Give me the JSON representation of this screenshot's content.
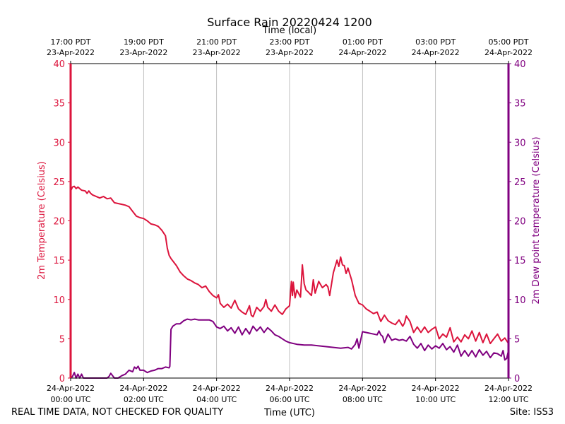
{
  "chart_data": {
    "type": "line",
    "title": "Surface Rain 20220424 1200",
    "top_axis_label": "Time (local)",
    "xlabel": "Time (UTC)",
    "ylabel_left": "2m Temperature (Celsius)",
    "ylabel_right": "2m Dew point temperature (Celsius)",
    "footer_left": "REAL TIME DATA, NOT CHECKED FOR QUALITY",
    "footer_right": "Site: ISS3",
    "x_unit": "hours since 2022-04-24 00:00 UTC",
    "xlim": [
      0,
      12
    ],
    "ylim": [
      0,
      40
    ],
    "yticks": [
      0,
      5,
      10,
      15,
      20,
      25,
      30,
      35,
      40
    ],
    "grid": "vertical",
    "colors": {
      "temperature": "#dc143c",
      "dewpoint": "#800080",
      "grid": "#b0b0b0",
      "axis": "#000000"
    },
    "bottom_ticks": [
      {
        "x": 0,
        "line1": "24-Apr-2022",
        "line2": "00:00 UTC"
      },
      {
        "x": 2,
        "line1": "24-Apr-2022",
        "line2": "02:00 UTC"
      },
      {
        "x": 4,
        "line1": "24-Apr-2022",
        "line2": "04:00 UTC"
      },
      {
        "x": 6,
        "line1": "24-Apr-2022",
        "line2": "06:00 UTC"
      },
      {
        "x": 8,
        "line1": "24-Apr-2022",
        "line2": "08:00 UTC"
      },
      {
        "x": 10,
        "line1": "24-Apr-2022",
        "line2": "10:00 UTC"
      },
      {
        "x": 12,
        "line1": "24-Apr-2022",
        "line2": "12:00 UTC"
      }
    ],
    "top_ticks": [
      {
        "x": 0,
        "line1": "17:00 PDT",
        "line2": "23-Apr-2022"
      },
      {
        "x": 2,
        "line1": "19:00 PDT",
        "line2": "23-Apr-2022"
      },
      {
        "x": 4,
        "line1": "21:00 PDT",
        "line2": "23-Apr-2022"
      },
      {
        "x": 6,
        "line1": "23:00 PDT",
        "line2": "23-Apr-2022"
      },
      {
        "x": 8,
        "line1": "01:00 PDT",
        "line2": "24-Apr-2022"
      },
      {
        "x": 10,
        "line1": "03:00 PDT",
        "line2": "24-Apr-2022"
      },
      {
        "x": 12,
        "line1": "05:00 PDT",
        "line2": "24-Apr-2022"
      }
    ],
    "series": [
      {
        "name": "2m Temperature",
        "axis": "left",
        "x": [
          0,
          0.05,
          0.1,
          0.15,
          0.2,
          0.3,
          0.4,
          0.45,
          0.5,
          0.55,
          0.6,
          0.8,
          0.9,
          1.0,
          1.1,
          1.2,
          1.3,
          1.4,
          1.5,
          1.6,
          1.7,
          1.8,
          1.9,
          2.0,
          2.1,
          2.2,
          2.3,
          2.4,
          2.5,
          2.6,
          2.65,
          2.7,
          2.75,
          2.8,
          2.9,
          3.0,
          3.1,
          3.2,
          3.3,
          3.4,
          3.5,
          3.6,
          3.7,
          3.8,
          3.9,
          4.0,
          4.05,
          4.1,
          4.2,
          4.3,
          4.4,
          4.5,
          4.6,
          4.7,
          4.8,
          4.9,
          4.95,
          5.0,
          5.1,
          5.2,
          5.3,
          5.35,
          5.4,
          5.5,
          5.6,
          5.7,
          5.8,
          5.9,
          6.0,
          6.05,
          6.08,
          6.1,
          6.15,
          6.2,
          6.3,
          6.35,
          6.4,
          6.45,
          6.5,
          6.6,
          6.65,
          6.7,
          6.8,
          6.9,
          7.0,
          7.05,
          7.1,
          7.2,
          7.3,
          7.35,
          7.4,
          7.45,
          7.5,
          7.55,
          7.6,
          7.7,
          7.8,
          7.85,
          7.9,
          8.0,
          8.1,
          8.2,
          8.3,
          8.4,
          8.5,
          8.6,
          8.7,
          8.8,
          8.9,
          9.0,
          9.1,
          9.15,
          9.2,
          9.3,
          9.4,
          9.5,
          9.6,
          9.7,
          9.8,
          9.9,
          10.0,
          10.1,
          10.2,
          10.3,
          10.4,
          10.5,
          10.6,
          10.7,
          10.8,
          10.9,
          11.0,
          11.1,
          11.2,
          11.3,
          11.4,
          11.5,
          11.6,
          11.7,
          11.8,
          11.9,
          12.0
        ],
        "values": [
          23.8,
          24.3,
          24.4,
          24.1,
          24.3,
          23.9,
          23.8,
          23.5,
          23.8,
          23.5,
          23.3,
          22.9,
          23.1,
          22.8,
          22.9,
          22.3,
          22.2,
          22.1,
          22.0,
          21.8,
          21.2,
          20.6,
          20.4,
          20.3,
          20.0,
          19.6,
          19.5,
          19.3,
          18.8,
          18.1,
          16.5,
          15.6,
          15.2,
          14.9,
          14.3,
          13.5,
          13.0,
          12.6,
          12.4,
          12.1,
          11.9,
          11.5,
          11.7,
          11.0,
          10.5,
          10.2,
          10.6,
          9.5,
          9.0,
          9.4,
          8.9,
          9.9,
          8.8,
          8.4,
          8.1,
          9.2,
          8.0,
          7.8,
          9.0,
          8.5,
          9.1,
          10.0,
          9.0,
          8.5,
          9.3,
          8.5,
          8.1,
          8.8,
          9.2,
          12.3,
          10.5,
          12.2,
          10.2,
          11.2,
          10.3,
          14.4,
          12.0,
          11.2,
          11.0,
          10.5,
          12.5,
          10.8,
          12.3,
          11.5,
          11.9,
          11.6,
          10.5,
          13.4,
          15.0,
          14.2,
          15.4,
          14.4,
          14.3,
          13.3,
          14.0,
          12.5,
          10.5,
          10.0,
          9.5,
          9.3,
          8.8,
          8.5,
          8.2,
          8.4,
          7.2,
          8.0,
          7.3,
          7.0,
          6.8,
          7.4,
          6.6,
          7.0,
          7.9,
          7.2,
          5.8,
          6.5,
          5.8,
          6.5,
          5.8,
          6.2,
          6.5,
          5.0,
          5.6,
          5.2,
          6.4,
          4.6,
          5.2,
          4.6,
          5.5,
          5.0,
          6.0,
          4.7,
          5.8,
          4.5,
          5.6,
          4.4,
          5.0,
          5.6,
          4.7,
          5.1,
          4.4
        ],
        "color": "#dc143c"
      },
      {
        "name": "2m Dew point temperature",
        "axis": "right",
        "x": [
          0,
          0.05,
          0.1,
          0.15,
          0.2,
          0.25,
          0.3,
          0.35,
          0.4,
          0.6,
          0.8,
          1.0,
          1.05,
          1.1,
          1.2,
          1.3,
          1.4,
          1.5,
          1.6,
          1.7,
          1.75,
          1.8,
          1.85,
          1.9,
          2.0,
          2.1,
          2.2,
          2.3,
          2.4,
          2.5,
          2.6,
          2.7,
          2.72,
          2.75,
          2.8,
          2.9,
          3.0,
          3.1,
          3.2,
          3.3,
          3.4,
          3.5,
          3.6,
          3.7,
          3.8,
          3.9,
          4.0,
          4.1,
          4.2,
          4.3,
          4.4,
          4.5,
          4.6,
          4.7,
          4.8,
          4.9,
          5.0,
          5.1,
          5.2,
          5.3,
          5.4,
          5.5,
          5.6,
          5.7,
          5.8,
          5.9,
          6.0,
          6.2,
          6.4,
          6.6,
          6.8,
          7.0,
          7.2,
          7.4,
          7.6,
          7.7,
          7.75,
          7.8,
          7.85,
          7.9,
          8.0,
          8.1,
          8.2,
          8.3,
          8.4,
          8.45,
          8.5,
          8.55,
          8.6,
          8.7,
          8.8,
          8.9,
          9.0,
          9.1,
          9.2,
          9.3,
          9.4,
          9.5,
          9.6,
          9.7,
          9.8,
          9.9,
          10.0,
          10.1,
          10.2,
          10.3,
          10.4,
          10.5,
          10.6,
          10.7,
          10.8,
          10.9,
          11.0,
          11.1,
          11.2,
          11.3,
          11.4,
          11.5,
          11.6,
          11.7,
          11.8,
          11.85,
          11.9,
          11.95,
          12.0
        ],
        "values": [
          0.0,
          0.2,
          0.7,
          0.0,
          0.5,
          0.0,
          0.5,
          0.0,
          0.0,
          0.0,
          0.0,
          0.0,
          0.2,
          0.6,
          0.0,
          0.0,
          0.3,
          0.5,
          1.0,
          0.8,
          1.4,
          1.2,
          1.5,
          1.0,
          1.0,
          0.7,
          0.9,
          1.0,
          1.2,
          1.2,
          1.4,
          1.3,
          1.5,
          6.2,
          6.6,
          6.9,
          6.9,
          7.3,
          7.5,
          7.4,
          7.5,
          7.4,
          7.4,
          7.4,
          7.4,
          7.2,
          6.5,
          6.3,
          6.6,
          6.0,
          6.4,
          5.7,
          6.5,
          5.5,
          6.3,
          5.6,
          6.6,
          6.0,
          6.5,
          5.8,
          6.4,
          6.0,
          5.5,
          5.3,
          5.0,
          4.7,
          4.5,
          4.3,
          4.2,
          4.2,
          4.1,
          4.0,
          3.9,
          3.8,
          3.9,
          3.7,
          4.0,
          4.3,
          5.0,
          3.8,
          5.9,
          5.8,
          5.7,
          5.6,
          5.5,
          6.0,
          5.5,
          5.3,
          4.5,
          5.6,
          4.8,
          5.0,
          4.8,
          4.9,
          4.7,
          5.3,
          4.3,
          3.8,
          4.4,
          3.5,
          4.2,
          3.7,
          4.1,
          3.8,
          4.4,
          3.6,
          4.0,
          3.3,
          4.2,
          2.8,
          3.5,
          2.8,
          3.5,
          2.7,
          3.6,
          2.9,
          3.4,
          2.6,
          3.2,
          3.1,
          2.8,
          3.5,
          2.3,
          2.5,
          3.5
        ],
        "color": "#800080"
      }
    ]
  }
}
